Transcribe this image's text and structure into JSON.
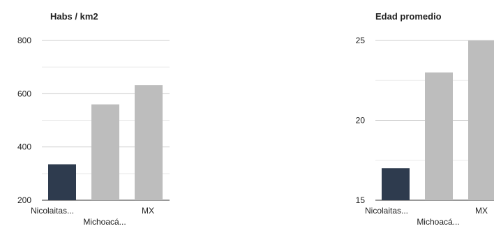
{
  "chart_data": [
    {
      "type": "bar",
      "title": "Habs / km2",
      "xlabel": "",
      "ylabel": "",
      "categories": [
        "Nicolaitas...",
        "Michoacá...",
        "MX"
      ],
      "values": [
        335,
        560,
        632
      ],
      "ylim": [
        200,
        800
      ],
      "yticks": [
        200,
        400,
        600,
        800
      ],
      "ytick_labels": [
        "200",
        "400",
        "600",
        "800"
      ],
      "grid": true,
      "bar_colors": [
        "#2e3b4e",
        "#bdbdbd",
        "#bdbdbd"
      ]
    },
    {
      "type": "bar",
      "title": "Edad promedio",
      "xlabel": "",
      "ylabel": "",
      "categories": [
        "Nicolaitas...",
        "Michoacá...",
        "MX"
      ],
      "values": [
        17,
        23,
        25
      ],
      "ylim": [
        15,
        25
      ],
      "yticks": [
        15,
        20,
        25
      ],
      "ytick_labels": [
        "15",
        "20",
        "25"
      ],
      "grid": true,
      "bar_colors": [
        "#2e3b4e",
        "#bdbdbd",
        "#bdbdbd"
      ]
    }
  ]
}
